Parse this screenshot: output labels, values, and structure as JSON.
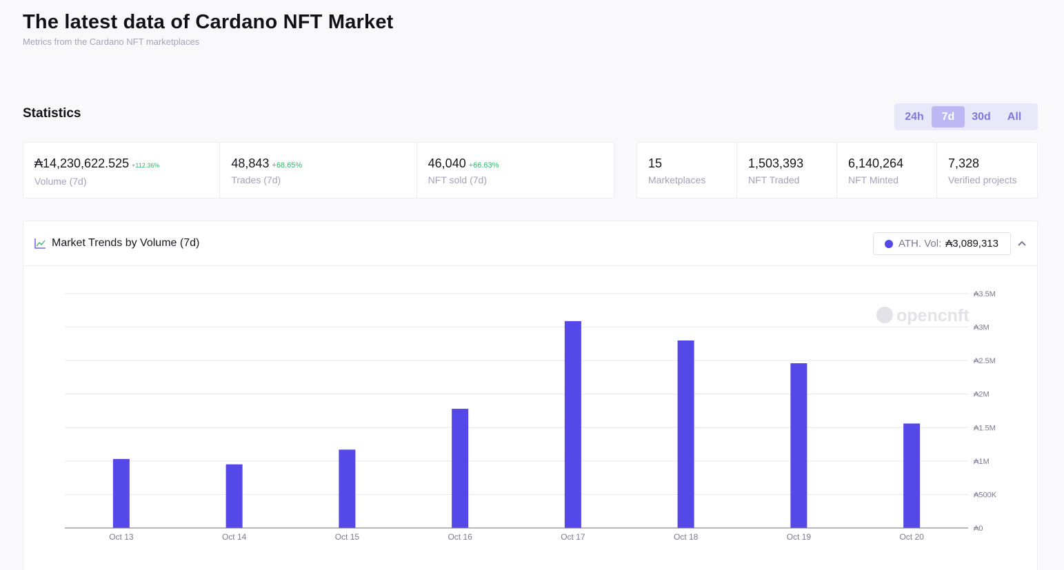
{
  "header": {
    "title": "The latest data of Cardano NFT Market",
    "subtitle": "Metrics from the Cardano NFT marketplaces"
  },
  "statistics": {
    "title": "Statistics",
    "range_tabs": [
      {
        "label": "24h",
        "active": false
      },
      {
        "label": "7d",
        "active": true
      },
      {
        "label": "30d",
        "active": false
      },
      {
        "label": "All",
        "active": false
      }
    ],
    "period_stats": [
      {
        "value": "₳14,230,622.525",
        "change": "+112.36%",
        "label": "Volume (7d)"
      },
      {
        "value": "48,843",
        "change": "+68.65%",
        "label": "Trades (7d)"
      },
      {
        "value": "46,040",
        "change": "+66.63%",
        "label": "NFT sold (7d)"
      }
    ],
    "totals": [
      {
        "value": "15",
        "label": "Marketplaces"
      },
      {
        "value": "1,503,393",
        "label": "NFT Traded"
      },
      {
        "value": "6,140,264",
        "label": "NFT Minted"
      },
      {
        "value": "7,328",
        "label": "Verified projects"
      }
    ]
  },
  "chart_panel": {
    "heading": "Market Trends by Volume (7d)",
    "heading_icon": "line-chart-icon",
    "ath_label": "ATH. Vol:",
    "ath_value": "₳3,089,313",
    "collapse_icon": "chevron-up-icon",
    "watermark": "opencnft",
    "accent_color": "#5548e8"
  },
  "chart_data": {
    "type": "bar",
    "categories": [
      "Oct 13",
      "Oct 14",
      "Oct 15",
      "Oct 16",
      "Oct 17",
      "Oct 18",
      "Oct 19",
      "Oct 20"
    ],
    "values": [
      1030000,
      950000,
      1170000,
      1780000,
      3089313,
      2800000,
      2460000,
      1560000
    ],
    "y_ticks": [
      {
        "value": 0,
        "label": "₳0"
      },
      {
        "value": 500000,
        "label": "₳500K"
      },
      {
        "value": 1000000,
        "label": "₳1M"
      },
      {
        "value": 1500000,
        "label": "₳1.5M"
      },
      {
        "value": 2000000,
        "label": "₳2M"
      },
      {
        "value": 2500000,
        "label": "₳2.5M"
      },
      {
        "value": 3000000,
        "label": "₳3M"
      },
      {
        "value": 3500000,
        "label": "₳3.5M"
      }
    ],
    "ylim": [
      0,
      3500000
    ],
    "grid": true,
    "y_axis_side": "right",
    "bar_color": "#5548e8"
  }
}
